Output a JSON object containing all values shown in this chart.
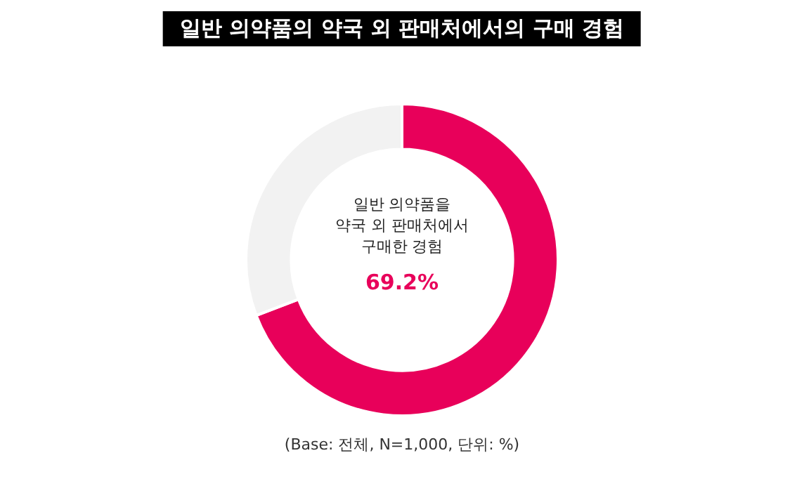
{
  "chart_data": {
    "type": "donut",
    "title": "일반 의약품의 약국 외 판매처에서의 구매 경험",
    "categories": [
      null,
      null
    ],
    "values": [
      69.2,
      30.8
    ],
    "colors": [
      "#e8005a",
      "#f2f2f2"
    ],
    "value_labels": [
      "69.2%",
      null
    ],
    "annotations": [
      "일반 의약품을\n약국 외 판매처에서\n구매한 경험",
      "(Base: 전체, N=1,000, 단위: %)"
    ],
    "legend": false
  }
}
